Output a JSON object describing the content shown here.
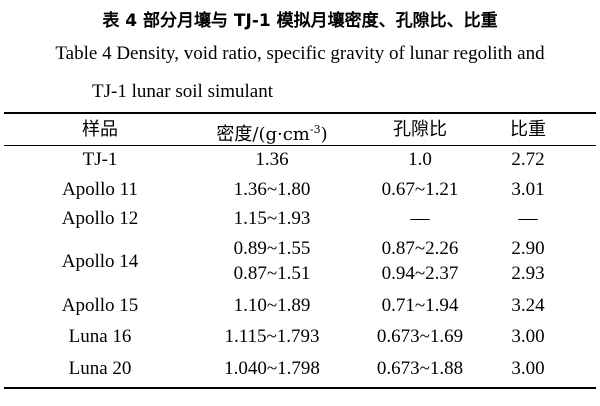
{
  "title_cn": "表 4  部分月壤与 TJ-1 模拟月壤密度、孔隙比、比重",
  "caption_en_line1": "Table 4 Density, void ratio, specific gravity of lunar regolith and",
  "caption_en_line2": "TJ-1 lunar soil simulant",
  "table": {
    "headers": [
      "样品",
      "密度/(g·cm",
      "孔隙比",
      "比重"
    ],
    "density_unit_exponent": "-3",
    "density_unit_close": ")",
    "rows": [
      {
        "sample": "TJ-1",
        "density": [
          "1.36"
        ],
        "void_ratio": [
          "1.0"
        ],
        "specific_gravity": [
          "2.72"
        ]
      },
      {
        "sample": "Apollo 11",
        "density": [
          "1.36~1.80"
        ],
        "void_ratio": [
          "0.67~1.21"
        ],
        "specific_gravity": [
          "3.01"
        ]
      },
      {
        "sample": "Apollo 12",
        "density": [
          "1.15~1.93"
        ],
        "void_ratio": [
          "—"
        ],
        "specific_gravity": [
          "—"
        ]
      },
      {
        "sample": "Apollo 14",
        "density": [
          "0.89~1.55",
          "0.87~1.51"
        ],
        "void_ratio": [
          "0.87~2.26",
          "0.94~2.37"
        ],
        "specific_gravity": [
          "2.90",
          "2.93"
        ]
      },
      {
        "sample": "Apollo 15",
        "density": [
          "1.10~1.89"
        ],
        "void_ratio": [
          "0.71~1.94"
        ],
        "specific_gravity": [
          "3.24"
        ]
      },
      {
        "sample": "Luna 16",
        "density": [
          "1.115~1.793"
        ],
        "void_ratio": [
          "0.673~1.69"
        ],
        "specific_gravity": [
          "3.00"
        ]
      },
      {
        "sample": "Luna 20",
        "density": [
          "1.040~1.798"
        ],
        "void_ratio": [
          "0.673~1.88"
        ],
        "specific_gravity": [
          "3.00"
        ]
      }
    ]
  }
}
